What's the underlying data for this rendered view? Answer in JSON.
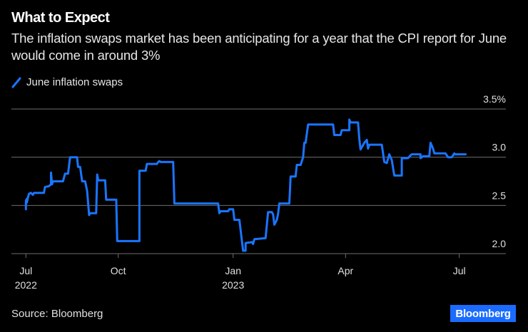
{
  "header": {
    "title": "What to Expect",
    "subtitle": "The inflation swaps market has been anticipating for a year that the CPI report for June would come in around 3%"
  },
  "footer": {
    "source": "Source: Bloomberg",
    "logo": "Bloomberg"
  },
  "colors": {
    "background": "#000000",
    "series": "#1a75ff",
    "grid": "#6e6e6e",
    "logo_bg": "#1a6cff"
  },
  "chart_data": {
    "type": "line",
    "title": "What to Expect",
    "subtitle": "The inflation swaps market has been anticipating for a year that the CPI report for June would come in around 3%",
    "xlabel": "",
    "ylabel": "",
    "ylim": [
      2.0,
      3.5
    ],
    "grid": true,
    "legend_position": "top-left",
    "y_ticks": [
      {
        "value": 3.5,
        "label": "3.5%"
      },
      {
        "value": 3.0,
        "label": "3.0"
      },
      {
        "value": 2.5,
        "label": "2.5"
      },
      {
        "value": 2.0,
        "label": "2.0"
      }
    ],
    "x_ticks": [
      {
        "date": "2022-07-01",
        "label": "Jul",
        "sublabel": "2022"
      },
      {
        "date": "2022-10-01",
        "label": "Oct",
        "sublabel": ""
      },
      {
        "date": "2023-01-01",
        "label": "Jan",
        "sublabel": "2023"
      },
      {
        "date": "2023-04-01",
        "label": "Apr",
        "sublabel": ""
      },
      {
        "date": "2023-07-01",
        "label": "Jul",
        "sublabel": ""
      }
    ],
    "series": [
      {
        "name": "June inflation swaps",
        "points": [
          [
            "2022-07-01",
            2.46
          ],
          [
            "2022-07-01",
            2.55
          ],
          [
            "2022-07-02",
            2.57
          ],
          [
            "2022-07-02",
            2.53
          ],
          [
            "2022-07-03",
            2.58
          ],
          [
            "2022-07-04",
            2.62
          ],
          [
            "2022-07-06",
            2.63
          ],
          [
            "2022-07-08",
            2.61
          ],
          [
            "2022-07-09",
            2.63
          ],
          [
            "2022-07-19",
            2.63
          ],
          [
            "2022-07-20",
            2.69
          ],
          [
            "2022-07-24",
            2.7
          ],
          [
            "2022-07-26",
            2.72
          ],
          [
            "2022-07-26",
            2.84
          ],
          [
            "2022-07-27",
            2.72
          ],
          [
            "2022-07-28",
            2.75
          ],
          [
            "2022-08-07",
            2.75
          ],
          [
            "2022-08-09",
            2.83
          ],
          [
            "2022-08-12",
            2.83
          ],
          [
            "2022-08-14",
            3.0
          ],
          [
            "2022-08-21",
            3.0
          ],
          [
            "2022-08-22",
            2.9
          ],
          [
            "2022-08-24",
            2.9
          ],
          [
            "2022-08-26",
            2.75
          ],
          [
            "2022-08-29",
            2.75
          ],
          [
            "2022-08-31",
            2.65
          ],
          [
            "2022-09-02",
            2.4
          ],
          [
            "2022-09-03",
            2.42
          ],
          [
            "2022-09-09",
            2.42
          ],
          [
            "2022-09-10",
            2.82
          ],
          [
            "2022-09-11",
            2.76
          ],
          [
            "2022-09-18",
            2.76
          ],
          [
            "2022-09-19",
            2.56
          ],
          [
            "2022-09-29",
            2.56
          ],
          [
            "2022-09-30",
            2.13
          ],
          [
            "2022-10-18",
            2.13
          ],
          [
            "2022-10-18",
            2.86
          ],
          [
            "2022-10-23",
            2.86
          ],
          [
            "2022-10-24",
            2.93
          ],
          [
            "2022-11-01",
            2.93
          ],
          [
            "2022-11-02",
            2.95
          ],
          [
            "2022-11-03",
            2.96
          ],
          [
            "2022-11-04",
            2.95
          ],
          [
            "2022-11-14",
            2.95
          ],
          [
            "2022-11-15",
            2.52
          ],
          [
            "2022-12-20",
            2.52
          ],
          [
            "2022-12-21",
            2.42
          ],
          [
            "2022-12-22",
            2.44
          ],
          [
            "2022-12-28",
            2.44
          ],
          [
            "2022-12-29",
            2.46
          ],
          [
            "2023-01-01",
            2.46
          ],
          [
            "2023-01-02",
            2.35
          ],
          [
            "2023-01-06",
            2.35
          ],
          [
            "2023-01-09",
            2.03
          ],
          [
            "2023-01-11",
            2.03
          ],
          [
            "2023-01-11",
            2.11
          ],
          [
            "2023-01-16",
            2.12
          ],
          [
            "2023-01-17",
            2.1
          ],
          [
            "2023-01-18",
            2.15
          ],
          [
            "2023-01-27",
            2.16
          ],
          [
            "2023-01-29",
            2.43
          ],
          [
            "2023-02-01",
            2.43
          ],
          [
            "2023-02-02",
            2.41
          ],
          [
            "2023-02-03",
            2.3
          ],
          [
            "2023-02-05",
            2.35
          ],
          [
            "2023-02-06",
            2.41
          ],
          [
            "2023-02-07",
            2.52
          ],
          [
            "2023-02-15",
            2.52
          ],
          [
            "2023-02-16",
            2.8
          ],
          [
            "2023-02-20",
            2.8
          ],
          [
            "2023-02-21",
            2.92
          ],
          [
            "2023-02-24",
            2.92
          ],
          [
            "2023-02-26",
            3.0
          ],
          [
            "2023-02-27",
            3.15
          ],
          [
            "2023-02-28",
            3.15
          ],
          [
            "2023-03-02",
            3.34
          ],
          [
            "2023-03-22",
            3.34
          ],
          [
            "2023-03-23",
            3.23
          ],
          [
            "2023-03-28",
            3.23
          ],
          [
            "2023-03-29",
            3.28
          ],
          [
            "2023-04-04",
            3.28
          ],
          [
            "2023-04-04",
            3.39
          ],
          [
            "2023-04-05",
            3.36
          ],
          [
            "2023-04-11",
            3.36
          ],
          [
            "2023-04-12",
            3.19
          ],
          [
            "2023-04-13",
            3.08
          ],
          [
            "2023-04-16",
            3.15
          ],
          [
            "2023-04-18",
            3.18
          ],
          [
            "2023-04-19",
            3.09
          ],
          [
            "2023-04-20",
            3.13
          ],
          [
            "2023-04-30",
            3.13
          ],
          [
            "2023-05-02",
            2.95
          ],
          [
            "2023-05-04",
            2.94
          ],
          [
            "2023-05-06",
            3.03
          ],
          [
            "2023-05-08",
            2.97
          ],
          [
            "2023-05-10",
            2.81
          ],
          [
            "2023-05-16",
            2.81
          ],
          [
            "2023-05-16",
            2.99
          ],
          [
            "2023-05-21",
            2.99
          ],
          [
            "2023-05-23",
            3.02
          ],
          [
            "2023-05-24",
            3.03
          ],
          [
            "2023-05-31",
            3.03
          ],
          [
            "2023-05-31",
            2.99
          ],
          [
            "2023-06-01",
            3.0
          ],
          [
            "2023-06-02",
            3.01
          ],
          [
            "2023-06-07",
            3.01
          ],
          [
            "2023-06-08",
            3.15
          ],
          [
            "2023-06-10",
            3.09
          ],
          [
            "2023-06-11",
            3.04
          ],
          [
            "2023-06-20",
            3.04
          ],
          [
            "2023-06-22",
            3.0
          ],
          [
            "2023-06-25",
            3.0
          ],
          [
            "2023-06-27",
            3.04
          ],
          [
            "2023-06-27",
            3.03
          ],
          [
            "2023-07-06",
            3.03
          ]
        ]
      }
    ]
  }
}
